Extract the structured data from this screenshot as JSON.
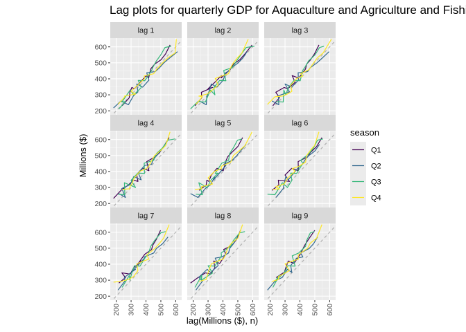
{
  "chart_data": {
    "type": "line",
    "title": "Lag plots for quarterly GDP for Aquaculture and Agriculture and Fishing",
    "xlabel": "lag(Millions ($), n)",
    "ylabel": "Millions ($)",
    "xlim": [
      160,
      640
    ],
    "ylim": [
      175,
      655
    ],
    "xticks": [
      200,
      300,
      400,
      500,
      600
    ],
    "yticks": [
      200,
      300,
      400,
      500,
      600
    ],
    "grid": true,
    "legend": {
      "title": "season",
      "placement": "right"
    },
    "reference_line": "y = x (dashed)",
    "panels": [
      "lag 1",
      "lag 2",
      "lag 3",
      "lag 4",
      "lag 5",
      "lag 6",
      "lag 7",
      "lag 8",
      "lag 9"
    ],
    "series_meta": [
      {
        "name": "Q1",
        "color": "#440154"
      },
      {
        "name": "Q2",
        "color": "#31688E"
      },
      {
        "name": "Q3",
        "color": "#35B779"
      },
      {
        "name": "Q4",
        "color": "#FDE725"
      }
    ],
    "quarterly_values": [
      [
        182,
        218,
        212,
        240
      ],
      [
        232,
        262,
        258,
        288
      ],
      [
        282,
        238,
        255,
        292
      ],
      [
        316,
        294,
        330,
        305
      ],
      [
        346,
        318,
        300,
        322
      ],
      [
        338,
        368,
        345,
        360
      ],
      [
        378,
        348,
        390,
        402
      ],
      [
        420,
        392,
        388,
        418
      ],
      [
        405,
        438,
        452,
        432
      ],
      [
        462,
        445,
        470,
        458
      ],
      [
        492,
        470,
        512,
        500
      ],
      [
        518,
        498,
        548,
        532
      ],
      [
        556,
        528,
        596,
        562
      ],
      [
        612,
        570,
        604,
        648
      ]
    ]
  }
}
